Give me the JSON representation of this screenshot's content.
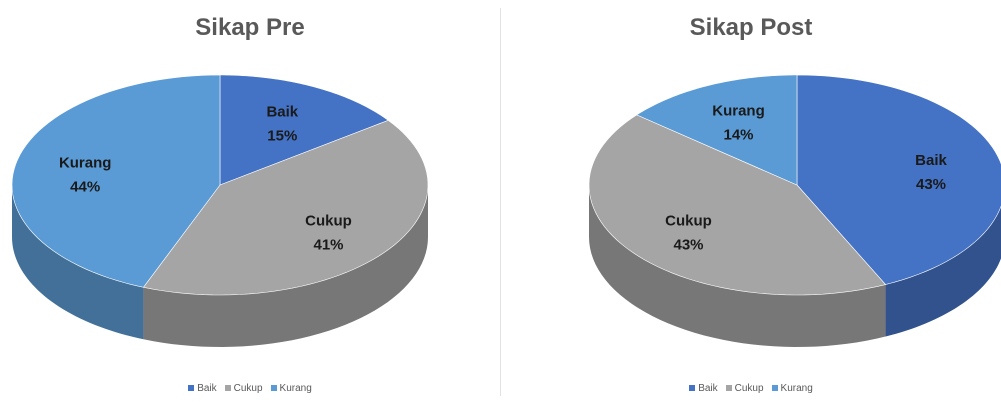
{
  "chart_data": [
    {
      "type": "pie",
      "title": "Sikap Pre",
      "legend_position": "bottom",
      "categories": [
        "Baik",
        "Cukup",
        "Kurang"
      ],
      "values": [
        15,
        41,
        44
      ],
      "value_labels": [
        "15%",
        "41%",
        "44%"
      ],
      "colors": [
        "#4472c4",
        "#a5a5a5",
        "#5b9bd5"
      ]
    },
    {
      "type": "pie",
      "title": "Sikap Post",
      "legend_position": "bottom",
      "categories": [
        "Baik",
        "Cukup",
        "Kurang"
      ],
      "values": [
        43,
        43,
        14
      ],
      "value_labels": [
        "43%",
        "43%",
        "14%"
      ],
      "colors": [
        "#4472c4",
        "#a5a5a5",
        "#5b9bd5"
      ]
    }
  ]
}
